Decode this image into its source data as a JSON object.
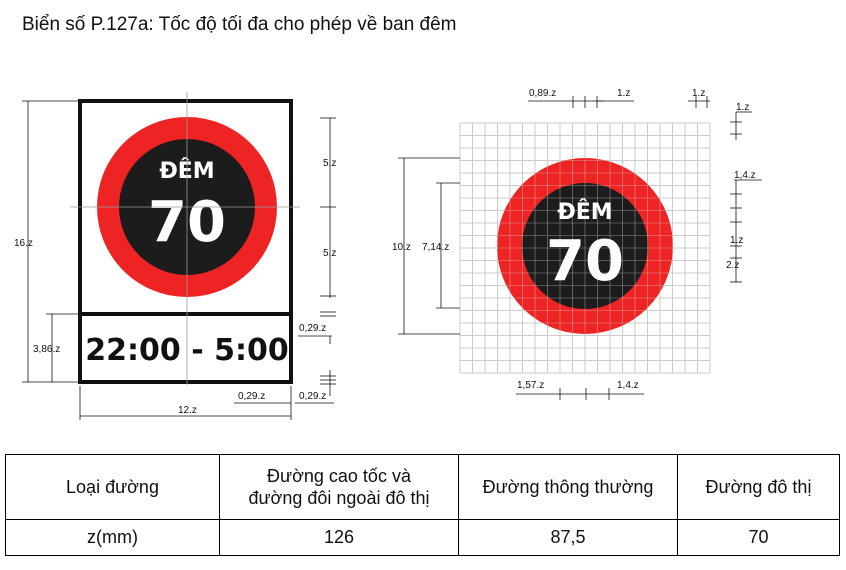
{
  "title": "Biển số P.127a: Tốc độ tối đa cho phép về ban đêm",
  "sign": {
    "word": "ĐÊM",
    "speed": "70",
    "time": "22:00 - 5:00",
    "colors": {
      "ring": "#ee2424",
      "disk": "#1c1c1c",
      "frame": "#111111",
      "text": "#ffffff"
    }
  },
  "left_dims": {
    "height_total": "16.z",
    "upper_5a": "5.z",
    "upper_5b": "5.z",
    "bottom_panel": "3,86.z",
    "gap_right": "0,29.z",
    "width_total": "12.z",
    "bottom_inner": "0,29.z",
    "bottom_outer": "0,29.z"
  },
  "right_dims": {
    "top_a": "0,89.z",
    "top_b": "1.z",
    "top_c": "1.z",
    "side_1": "1.z",
    "side_14": "1,4.z",
    "side_1b": "1.z",
    "side_2": "2.z",
    "outer_d": "10.z",
    "inner_d": "7,14.z",
    "bottom_a": "1,57.z",
    "bottom_b": "1,4.z"
  },
  "table": {
    "header": [
      "Loại đường",
      "Đường cao tốc và\nđường đôi ngoài đô thị",
      "Đường thông thường",
      "Đường đô thị"
    ],
    "row": [
      "z(mm)",
      "126",
      "87,5",
      "70"
    ]
  }
}
